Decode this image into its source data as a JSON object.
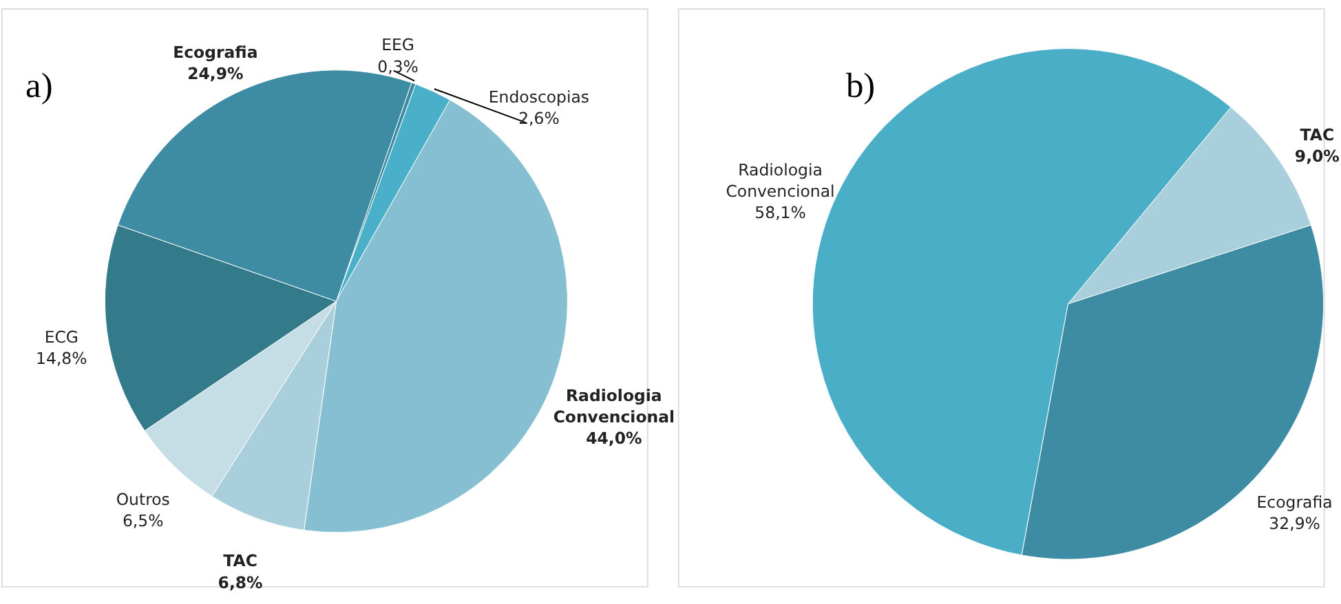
{
  "chart_data": [
    {
      "type": "pie",
      "title": "a)",
      "categories": [
        "EEG",
        "Endoscopias",
        "Radiologia Convencional",
        "TAC",
        "Outros",
        "ECG",
        "Ecografia"
      ],
      "values": [
        0.3,
        2.6,
        44.0,
        6.8,
        6.5,
        14.8,
        24.9
      ],
      "value_labels": [
        "0,3%",
        "2,6%",
        "44,0%",
        "6,8%",
        "6,5%",
        "14,8%",
        "24,9%"
      ],
      "colors": [
        "#3a8aa0",
        "#4aafc8",
        "#86bfd1",
        "#a9cfdc",
        "#c5dee6",
        "#337a8a",
        "#3e8ca3"
      ],
      "legend": false
    },
    {
      "type": "pie",
      "title": "b)",
      "categories": [
        "TAC",
        "Ecografia",
        "Radiologia Convencional"
      ],
      "values": [
        9.0,
        32.9,
        58.1
      ],
      "value_labels": [
        "9,0%",
        "32,9%",
        "58,1%"
      ],
      "colors": [
        "#a9cfdc",
        "#3e8ca3",
        "#4aaec6"
      ],
      "legend": false
    }
  ]
}
